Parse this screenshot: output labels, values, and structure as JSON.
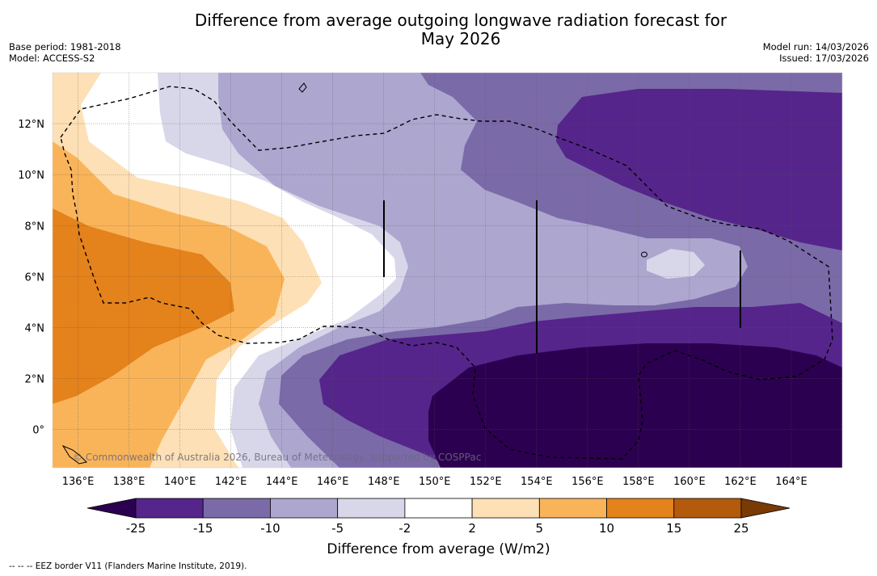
{
  "title_line1": "Difference from average outgoing longwave radiation forecast for",
  "title_line2": "May 2026",
  "meta_left": {
    "base_period": "Base period: 1981-2018",
    "model": "Model: ACCESS-S2"
  },
  "meta_right": {
    "model_run": "Model run: 14/03/2026",
    "issued": "Issued: 17/03/2026"
  },
  "map": {
    "lon_min": 135.0,
    "lon_max": 166.0,
    "lat_min": -1.5,
    "lat_max": 14.0,
    "lat_ticks": [
      {
        "value": 12,
        "label": "12°N"
      },
      {
        "value": 10,
        "label": "10°N"
      },
      {
        "value": 8,
        "label": "8°N"
      },
      {
        "value": 6,
        "label": "6°N"
      },
      {
        "value": 4,
        "label": "4°N"
      },
      {
        "value": 2,
        "label": "2°N"
      },
      {
        "value": 0,
        "label": "0°"
      }
    ],
    "lon_ticks": [
      {
        "value": 136,
        "label": "136°E"
      },
      {
        "value": 138,
        "label": "138°E"
      },
      {
        "value": 140,
        "label": "140°E"
      },
      {
        "value": 142,
        "label": "142°E"
      },
      {
        "value": 144,
        "label": "144°E"
      },
      {
        "value": 146,
        "label": "146°E"
      },
      {
        "value": 148,
        "label": "148°E"
      },
      {
        "value": 150,
        "label": "150°E"
      },
      {
        "value": 152,
        "label": "152°E"
      },
      {
        "value": 154,
        "label": "154°E"
      },
      {
        "value": 156,
        "label": "156°E"
      },
      {
        "value": 158,
        "label": "158°E"
      },
      {
        "value": 160,
        "label": "160°E"
      },
      {
        "value": 162,
        "label": "162°E"
      },
      {
        "value": 164,
        "label": "164°E"
      }
    ],
    "watermark": "© Commonwealth of Australia 2026, Bureau of Meteorology, supported by COSPPac"
  },
  "colorbar": {
    "boundaries": [
      "-25",
      "-15",
      "-10",
      "-5",
      "-2",
      "2",
      "5",
      "10",
      "15",
      "25"
    ],
    "colors": [
      "#2c0050",
      "#55258b",
      "#7b6aa8",
      "#ada6cf",
      "#d8d7ea",
      "#ffffff",
      "#fde0b5",
      "#f9b45a",
      "#e4821b",
      "#b35a0c",
      "#7a3a05"
    ],
    "label": "Difference from average (W/m2)"
  },
  "footer_note": "--  --  -- EEZ border V11 (Flanders Marine Institute, 2019)."
}
